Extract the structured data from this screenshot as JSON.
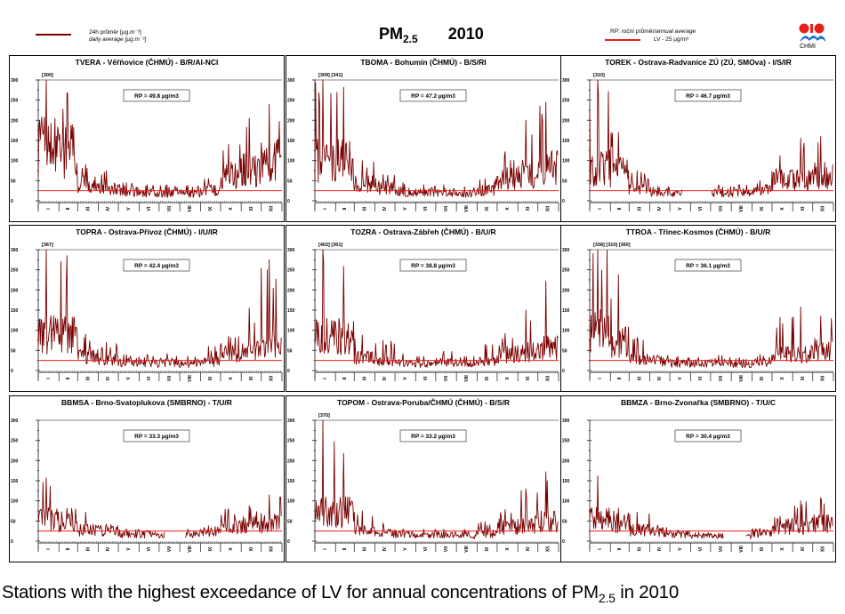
{
  "header": {
    "legend_daily_line1": "24h průměr [µg.m⁻³]",
    "legend_daily_line2": "daily average [µg.m⁻³]",
    "title_main": "PM",
    "title_sub": "2.5",
    "title_year": "2010",
    "legend_rp_prefix": "RP: roční průměr/",
    "legend_rp_italic": "annual average",
    "legend_lv": "LV - 25 µg/m³",
    "logo_text": "CHMI"
  },
  "colors": {
    "series": "#7a0000",
    "limit_line": "#e8201a",
    "logo_red": "#e8201a",
    "logo_blue": "#1a6fd6"
  },
  "caption": {
    "before": "Stations with the highest exceedance of LV for annual concentrations of PM",
    "sub": "2.5",
    "after": " in 2010"
  },
  "chart_data": [
    {
      "type": "line",
      "title": "TVERA -  Věřňovice (ČHMÚ) - B/R/AI-NCI",
      "annotation": "RP = 49.8 µg/m3",
      "clipped_peaks": "[300]",
      "limit_value": 25,
      "ylim": [
        0,
        300
      ],
      "yticks": [
        0,
        50,
        100,
        150,
        200,
        250,
        300
      ],
      "months": [
        "I",
        "II",
        "III",
        "IV",
        "V",
        "VI",
        "VII",
        "VIII",
        "IX",
        "X",
        "XI",
        "XII"
      ],
      "monthly_profile": [
        150,
        135,
        45,
        35,
        25,
        22,
        22,
        20,
        30,
        70,
        85,
        110
      ],
      "monthly_peak": [
        300,
        268,
        90,
        75,
        45,
        40,
        40,
        38,
        55,
        140,
        205,
        240
      ],
      "gaps": []
    },
    {
      "type": "line",
      "title": "TBOMA - Bohumín (ČHMÚ) - B/S/RI",
      "annotation": "RP = 47.2 µg/m3",
      "clipped_peaks": "[309] [341]",
      "limit_value": 25,
      "ylim": [
        0,
        300
      ],
      "yticks": [
        0,
        50,
        100,
        150,
        200,
        250,
        300
      ],
      "months": [
        "I",
        "II",
        "III",
        "IV",
        "V",
        "VI",
        "VII",
        "VIII",
        "IX",
        "X",
        "XI",
        "XII"
      ],
      "monthly_profile": [
        110,
        110,
        45,
        35,
        25,
        22,
        22,
        20,
        30,
        60,
        75,
        100
      ],
      "monthly_peak": [
        300,
        282,
        100,
        65,
        45,
        40,
        40,
        35,
        55,
        122,
        200,
        245
      ],
      "gaps": []
    },
    {
      "type": "line",
      "title": "TOREK - Ostrava-Radvanice ZÚ (ZÚ, SMOva) - I/S/IR",
      "annotation": "RP = 46.7 µg/m3",
      "clipped_peaks": "[310]",
      "limit_value": 25,
      "ylim": [
        0,
        300
      ],
      "yticks": [
        0,
        50,
        100,
        150,
        200,
        250,
        300
      ],
      "months": [
        "I",
        "II",
        "III",
        "IV",
        "V",
        "VI",
        "VII",
        "VIII",
        "IX",
        "X",
        "XI",
        "XII"
      ],
      "monthly_profile": [
        90,
        80,
        40,
        25,
        20,
        20,
        22,
        22,
        30,
        60,
        55,
        70
      ],
      "monthly_peak": [
        300,
        170,
        75,
        35,
        25,
        30,
        40,
        40,
        50,
        112,
        155,
        160
      ],
      "gaps": [
        [
          0.38,
          0.5
        ]
      ]
    },
    {
      "type": "line",
      "title": "TOPRA - Ostrava-Přívoz (ČHMÚ) - I/U/IR",
      "annotation": "RP = 42.4 µg/m3",
      "clipped_peaks": "[367]",
      "limit_value": 25,
      "ylim": [
        0,
        300
      ],
      "yticks": [
        0,
        50,
        100,
        150,
        200,
        250,
        300
      ],
      "months": [
        "I",
        "II",
        "III",
        "IV",
        "V",
        "VI",
        "VII",
        "VIII",
        "IX",
        "X",
        "XI",
        "XII"
      ],
      "monthly_profile": [
        100,
        100,
        40,
        30,
        22,
        20,
        22,
        18,
        25,
        50,
        55,
        80
      ],
      "monthly_peak": [
        300,
        285,
        90,
        70,
        40,
        40,
        42,
        35,
        60,
        85,
        155,
        275
      ],
      "gaps": []
    },
    {
      "type": "line",
      "title": "TOZRA - Ostrava-Zábřeh (ČHMÚ) - B/U/R",
      "annotation": "RP = 38.8 µg/m3",
      "clipped_peaks": "[402] [301]",
      "limit_value": 25,
      "ylim": [
        0,
        300
      ],
      "yticks": [
        0,
        50,
        100,
        150,
        200,
        250,
        300
      ],
      "months": [
        "I",
        "II",
        "III",
        "IV",
        "V",
        "VI",
        "VII",
        "VIII",
        "IX",
        "X",
        "XI",
        "XII"
      ],
      "monthly_profile": [
        100,
        95,
        35,
        25,
        20,
        18,
        22,
        18,
        25,
        45,
        50,
        65
      ],
      "monthly_peak": [
        300,
        258,
        88,
        75,
        42,
        35,
        48,
        35,
        65,
        92,
        150,
        222
      ],
      "gaps": []
    },
    {
      "type": "line",
      "title": "TTROA - Třinec-Kosmos (ČHMÚ) - B/U/R",
      "annotation": "RP = 36.1 µg/m3",
      "clipped_peaks": "[338] [310] [360]",
      "limit_value": 25,
      "ylim": [
        0,
        300
      ],
      "yticks": [
        0,
        50,
        100,
        150,
        200,
        250,
        300
      ],
      "months": [
        "I",
        "II",
        "III",
        "IV",
        "V",
        "VI",
        "VII",
        "VIII",
        "IX",
        "X",
        "XI",
        "XII"
      ],
      "monthly_profile": [
        110,
        80,
        30,
        25,
        20,
        20,
        22,
        18,
        22,
        45,
        45,
        60
      ],
      "monthly_peak": [
        300,
        238,
        82,
        38,
        35,
        32,
        38,
        32,
        40,
        132,
        158,
        135
      ],
      "gaps": []
    },
    {
      "type": "line",
      "title": "BBMSA - Brno-Svatoplukova (SMBRNO) - T/U/R",
      "annotation": "RP = 33.3 µg/m3",
      "clipped_peaks": "",
      "limit_value": 25,
      "ylim": [
        0,
        300
      ],
      "yticks": [
        0,
        50,
        100,
        150,
        200,
        250,
        300
      ],
      "months": [
        "I",
        "II",
        "III",
        "IV",
        "V",
        "VI",
        "VII",
        "VIII",
        "IX",
        "X",
        "XI",
        "XII"
      ],
      "monthly_profile": [
        60,
        50,
        30,
        28,
        20,
        18,
        15,
        18,
        25,
        40,
        45,
        50
      ],
      "monthly_peak": [
        157,
        82,
        72,
        42,
        30,
        27,
        25,
        30,
        38,
        80,
        88,
        115
      ],
      "gaps": [
        [
          0.52,
          0.6
        ]
      ]
    },
    {
      "type": "line",
      "title": "TOPOM - Ostrava-Poruba/ČHMÚ (ČHMÚ) - B/S/R",
      "annotation": "RP = 33.2 µg/m3",
      "clipped_peaks": "[370]",
      "limit_value": 25,
      "ylim": [
        0,
        300
      ],
      "yticks": [
        0,
        50,
        100,
        150,
        200,
        250,
        300
      ],
      "months": [
        "I",
        "II",
        "III",
        "IV",
        "V",
        "VI",
        "VII",
        "VIII",
        "IX",
        "X",
        "XI",
        "XII"
      ],
      "monthly_profile": [
        80,
        80,
        30,
        22,
        18,
        16,
        18,
        15,
        22,
        40,
        45,
        55
      ],
      "monthly_peak": [
        300,
        218,
        75,
        45,
        30,
        30,
        30,
        30,
        48,
        78,
        130,
        172
      ],
      "gaps": []
    },
    {
      "type": "line",
      "title": "BBMZA - Brno-Zvonařka (SMBRNO) - T/U/C",
      "annotation": "RP = 30.4 µg/m3",
      "clipped_peaks": "",
      "limit_value": 25,
      "ylim": [
        0,
        300
      ],
      "yticks": [
        0,
        50,
        100,
        150,
        200,
        250,
        300
      ],
      "months": [
        "I",
        "II",
        "III",
        "IV",
        "V",
        "VI",
        "VII",
        "VIII",
        "IX",
        "X",
        "XI",
        "XII"
      ],
      "monthly_profile": [
        60,
        50,
        30,
        25,
        18,
        15,
        15,
        12,
        22,
        40,
        40,
        50
      ],
      "monthly_peak": [
        162,
        82,
        72,
        40,
        28,
        22,
        20,
        20,
        32,
        62,
        100,
        108
      ],
      "gaps": [
        [
          0.55,
          0.64
        ]
      ]
    }
  ]
}
